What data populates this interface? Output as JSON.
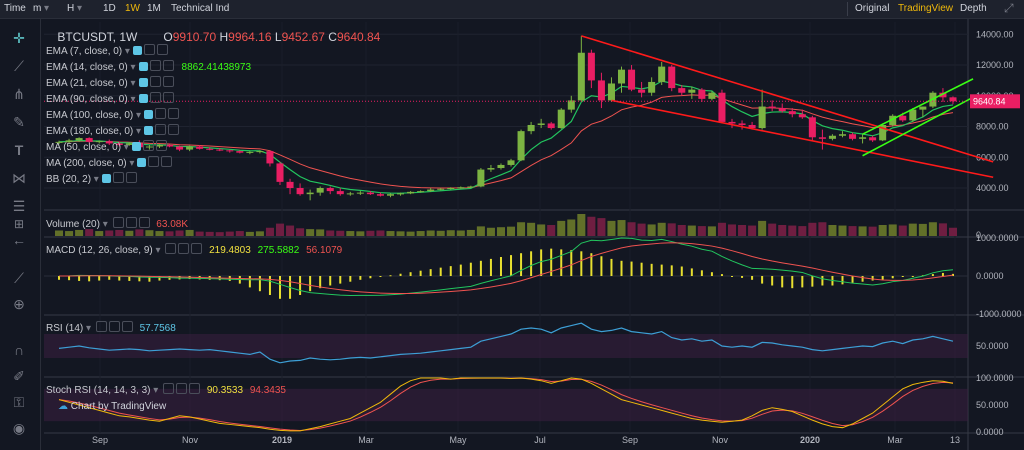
{
  "topbar": {
    "items": [
      "Time",
      "m",
      "H",
      "1D",
      "1W",
      "1M",
      "Technical Ind"
    ],
    "active": "1W",
    "right": [
      "Original",
      "TradingView",
      "Depth"
    ],
    "right_active": "TradingView",
    "chevron": "▾"
  },
  "symbol": {
    "name": "BTCUSDT, 1W",
    "o_label": "O",
    "o": "9910.70",
    "h_label": "H",
    "h": "9964.16",
    "l_label": "L",
    "l": "9452.67",
    "c_label": "C",
    "c": "9640.84"
  },
  "indicators": [
    {
      "label": "EMA (7, close, 0)",
      "value": ""
    },
    {
      "label": "EMA (14, close, 0)",
      "value": "8862.41438973"
    },
    {
      "label": "EMA (21, close, 0)",
      "value": ""
    },
    {
      "label": "EMA (90, close, 0)",
      "value": ""
    },
    {
      "label": "EMA (100, close, 0)",
      "value": ""
    },
    {
      "label": "EMA (180, close, 0)",
      "value": ""
    },
    {
      "label": "MA (50, close, 0)",
      "value": ""
    },
    {
      "label": "MA (200, close, 0)",
      "value": ""
    },
    {
      "label": "BB (20, 2)",
      "value": ""
    }
  ],
  "panes": {
    "volume": {
      "label": "Volume (20)",
      "value": "63.08K"
    },
    "macd": {
      "label": "MACD (12, 26, close, 9)",
      "v1": "219.4803",
      "v2": "275.5882",
      "v3": "56.1079"
    },
    "rsi": {
      "label": "RSI (14)",
      "value": "57.7568"
    },
    "stoch": {
      "label": "Stoch RSI (14, 14, 3, 3)",
      "v1": "90.3533",
      "v2": "94.3435"
    }
  },
  "watermark": "Chart by TradingView",
  "tools": [
    "crosshair-icon",
    "trendline-icon",
    "pitchfork-icon",
    "brush-icon",
    "text-icon",
    "pattern-icon",
    "fib-icon",
    "measure-icon",
    "back-arrow-icon",
    "ruler-icon",
    "zoom-icon",
    "magnet-icon",
    "lock-draw-icon",
    "lock-icon",
    "eye-icon",
    "trash-icon"
  ],
  "colors": {
    "up": "#7cb342",
    "down": "#e91e63",
    "ema": "#22c55e",
    "ma": "#ef5350",
    "trend": "#ff1a1a",
    "channel": "#39ff14",
    "rsi": "#3d9fd6",
    "stoch_k": "#f0b90b",
    "stoch_d": "#ef5350"
  },
  "chart_data": {
    "type": "candlestick",
    "symbol": "BTCUSDT",
    "interval": "1W",
    "last_price": 9640.84,
    "x_labels": [
      "Sep",
      "Nov",
      "2019",
      "Mar",
      "May",
      "Jul",
      "Sep",
      "Nov",
      "2020",
      "Mar",
      "13"
    ],
    "price_ticks": [
      14000,
      12000,
      10000,
      8000,
      6000,
      4000
    ],
    "price_ylim": [
      2700,
      14800
    ],
    "candles": [
      [
        6950,
        7080,
        6850,
        7000
      ],
      [
        7000,
        7200,
        6900,
        7100
      ],
      [
        7100,
        7300,
        7000,
        7250
      ],
      [
        7250,
        7300,
        6950,
        7000
      ],
      [
        7000,
        7100,
        6900,
        7050
      ],
      [
        7050,
        7150,
        6800,
        6900
      ],
      [
        6900,
        7000,
        6700,
        6800
      ],
      [
        6800,
        6950,
        6750,
        6900
      ],
      [
        6900,
        7100,
        6600,
        6650
      ],
      [
        6650,
        6800,
        6500,
        6700
      ],
      [
        6700,
        6850,
        6600,
        6800
      ],
      [
        6800,
        6900,
        6650,
        6700
      ],
      [
        6700,
        6750,
        6400,
        6500
      ],
      [
        6500,
        6750,
        6400,
        6700
      ],
      [
        6700,
        6800,
        6500,
        6550
      ],
      [
        6550,
        6650,
        6450,
        6500
      ],
      [
        6500,
        6600,
        6400,
        6450
      ],
      [
        6450,
        6500,
        6300,
        6400
      ],
      [
        6400,
        6450,
        6250,
        6300
      ],
      [
        6300,
        6400,
        6200,
        6350
      ],
      [
        6350,
        6450,
        6250,
        6400
      ],
      [
        6400,
        6400,
        5400,
        5600
      ],
      [
        5600,
        5700,
        4200,
        4400
      ],
      [
        4400,
        4600,
        3600,
        4000
      ],
      [
        4000,
        4300,
        3500,
        3600
      ],
      [
        3600,
        3900,
        3200,
        3700
      ],
      [
        3700,
        4100,
        3500,
        4000
      ],
      [
        4000,
        4100,
        3600,
        3800
      ],
      [
        3800,
        4000,
        3500,
        3600
      ],
      [
        3600,
        3750,
        3500,
        3650
      ],
      [
        3650,
        3800,
        3550,
        3700
      ],
      [
        3700,
        3800,
        3550,
        3600
      ],
      [
        3600,
        3700,
        3450,
        3500
      ],
      [
        3500,
        3650,
        3400,
        3600
      ],
      [
        3600,
        3700,
        3500,
        3650
      ],
      [
        3650,
        3800,
        3600,
        3750
      ],
      [
        3750,
        3850,
        3700,
        3800
      ],
      [
        3800,
        4000,
        3750,
        3900
      ],
      [
        3900,
        4000,
        3850,
        3950
      ],
      [
        3950,
        4050,
        3900,
        4000
      ],
      [
        4000,
        4100,
        3950,
        4050
      ],
      [
        4050,
        4150,
        4000,
        4100
      ],
      [
        4100,
        5300,
        4050,
        5200
      ],
      [
        5200,
        5500,
        5050,
        5300
      ],
      [
        5300,
        5600,
        5200,
        5500
      ],
      [
        5500,
        5900,
        5400,
        5800
      ],
      [
        5800,
        7800,
        5750,
        7700
      ],
      [
        7700,
        8300,
        7500,
        8100
      ],
      [
        8100,
        8500,
        7900,
        8200
      ],
      [
        8200,
        8300,
        7800,
        7900
      ],
      [
        7900,
        9200,
        7850,
        9100
      ],
      [
        9100,
        10000,
        8900,
        9700
      ],
      [
        9700,
        13900,
        9600,
        12800
      ],
      [
        12800,
        13000,
        10500,
        11000
      ],
      [
        11000,
        11500,
        9200,
        9700
      ],
      [
        9700,
        11200,
        9600,
        10800
      ],
      [
        10800,
        11900,
        10200,
        11700
      ],
      [
        11700,
        12000,
        10300,
        10400
      ],
      [
        10400,
        10900,
        9900,
        10200
      ],
      [
        10200,
        11200,
        10000,
        10900
      ],
      [
        10900,
        12200,
        10700,
        11900
      ],
      [
        11900,
        12000,
        10300,
        10500
      ],
      [
        10500,
        10700,
        10000,
        10200
      ],
      [
        10200,
        10600,
        9800,
        10400
      ],
      [
        10400,
        10500,
        9600,
        9800
      ],
      [
        9800,
        10300,
        9700,
        10200
      ],
      [
        10200,
        10400,
        8200,
        8300
      ],
      [
        8300,
        8500,
        7900,
        8200
      ],
      [
        8200,
        8400,
        7800,
        8100
      ],
      [
        8100,
        8300,
        7800,
        7900
      ],
      [
        7900,
        10400,
        7800,
        9300
      ],
      [
        9300,
        9700,
        9000,
        9200
      ],
      [
        9200,
        9500,
        8900,
        9000
      ],
      [
        9000,
        9200,
        8600,
        8800
      ],
      [
        8800,
        9100,
        8500,
        8600
      ],
      [
        8600,
        8700,
        7100,
        7300
      ],
      [
        7300,
        7800,
        6500,
        7200
      ],
      [
        7200,
        7500,
        7100,
        7400
      ],
      [
        7400,
        7700,
        7300,
        7500
      ],
      [
        7500,
        7600,
        7100,
        7200
      ],
      [
        7200,
        7500,
        6900,
        7300
      ],
      [
        7300,
        7400,
        7000,
        7100
      ],
      [
        7100,
        8200,
        7050,
        8100
      ],
      [
        8100,
        8800,
        8000,
        8700
      ],
      [
        8700,
        8900,
        8300,
        8400
      ],
      [
        8400,
        9200,
        8300,
        9100
      ],
      [
        9100,
        9300,
        8600,
        9300
      ],
      [
        9300,
        10300,
        9200,
        10200
      ],
      [
        10200,
        10500,
        9600,
        9900
      ],
      [
        9900,
        9960,
        9450,
        9640
      ]
    ],
    "volume": [
      20,
      18,
      22,
      25,
      18,
      20,
      22,
      19,
      24,
      21,
      18,
      17,
      20,
      22,
      16,
      15,
      14,
      16,
      18,
      15,
      17,
      30,
      45,
      38,
      28,
      25,
      24,
      20,
      19,
      18,
      17,
      19,
      20,
      18,
      17,
      16,
      18,
      20,
      19,
      21,
      20,
      22,
      35,
      30,
      32,
      34,
      50,
      48,
      42,
      40,
      55,
      60,
      80,
      70,
      65,
      55,
      58,
      50,
      45,
      42,
      48,
      46,
      40,
      38,
      36,
      35,
      48,
      42,
      40,
      38,
      55,
      45,
      40,
      38,
      36,
      48,
      50,
      40,
      38,
      36,
      35,
      34,
      40,
      42,
      38,
      45,
      44,
      50,
      46,
      30
    ],
    "rsi": [
      46,
      48,
      50,
      47,
      45,
      43,
      44,
      45,
      44,
      42,
      43,
      44,
      45,
      44,
      43,
      44,
      42,
      40,
      38,
      36,
      40,
      28,
      22,
      25,
      26,
      30,
      28,
      27,
      28,
      30,
      31,
      30,
      32,
      34,
      36,
      37,
      38,
      40,
      42,
      44,
      46,
      48,
      58,
      62,
      66,
      70,
      78,
      80,
      78,
      72,
      80,
      84,
      88,
      78,
      74,
      76,
      80,
      74,
      72,
      70,
      74,
      64,
      60,
      62,
      58,
      60,
      50,
      48,
      50,
      48,
      56,
      55,
      52,
      50,
      48,
      44,
      42,
      44,
      46,
      48,
      50,
      49,
      55,
      58,
      54,
      60,
      62,
      66,
      62,
      58
    ],
    "macd_hist": [
      -100,
      -110,
      -130,
      -140,
      -120,
      -100,
      -120,
      -130,
      -140,
      -150,
      -120,
      -100,
      -90,
      -80,
      -90,
      -100,
      -110,
      -130,
      -200,
      -300,
      -400,
      -500,
      -600,
      -600,
      -500,
      -400,
      -320,
      -250,
      -200,
      -150,
      -100,
      -60,
      -20,
      20,
      60,
      100,
      140,
      180,
      220,
      260,
      300,
      350,
      400,
      450,
      500,
      550,
      600,
      650,
      700,
      720,
      700,
      680,
      650,
      600,
      520,
      450,
      400,
      380,
      350,
      320,
      300,
      280,
      250,
      200,
      150,
      100,
      50,
      0,
      -50,
      -100,
      -200,
      -250,
      -300,
      -320,
      -300,
      -280,
      -250,
      -250,
      -220,
      -180,
      -150,
      -120,
      -100,
      -60,
      -20,
      0,
      20,
      50,
      80,
      56
    ],
    "stoch_k": [
      60,
      55,
      50,
      45,
      40,
      35,
      30,
      28,
      25,
      22,
      20,
      25,
      30,
      28,
      24,
      20,
      16,
      14,
      12,
      10,
      8,
      5,
      3,
      2,
      2,
      6,
      10,
      15,
      20,
      25,
      35,
      45,
      55,
      70,
      85,
      95,
      100,
      100,
      100,
      98,
      100,
      100,
      100,
      100,
      100,
      99,
      100,
      98,
      95,
      90,
      95,
      100,
      98,
      90,
      80,
      70,
      60,
      55,
      50,
      45,
      40,
      35,
      30,
      25,
      22,
      20,
      18,
      20,
      22,
      30,
      40,
      45,
      42,
      38,
      30,
      22,
      15,
      10,
      8,
      15,
      25,
      35,
      50,
      65,
      80,
      88,
      92,
      95,
      94,
      90
    ],
    "macd_ylim": [
      -1000,
      1000
    ],
    "rsi_ylim": [
      0,
      100
    ],
    "stoch_ylim": [
      0,
      100
    ],
    "y_ticks": {
      "volume": [
        "0"
      ],
      "macd": [
        "1000.0000",
        "0.0000",
        "-1000.0000"
      ],
      "rsi": [
        "50.0000"
      ],
      "stoch": [
        "100.0000",
        "50.0000",
        "0.0000"
      ]
    }
  }
}
